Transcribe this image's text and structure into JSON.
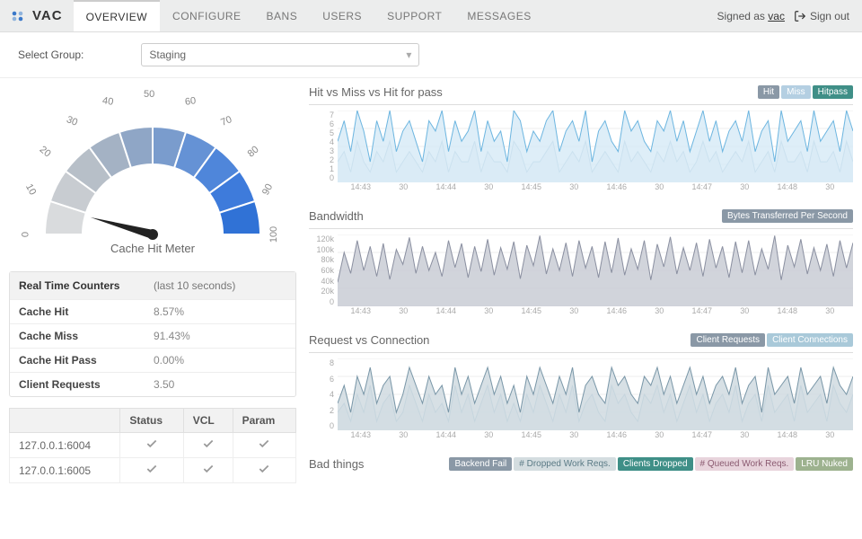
{
  "brand": "VAC",
  "nav": {
    "items": [
      "OVERVIEW",
      "CONFIGURE",
      "BANS",
      "USERS",
      "SUPPORT",
      "MESSAGES"
    ],
    "active": 0
  },
  "auth": {
    "signed_as_prefix": "Signed as",
    "user": "vac",
    "signout": "Sign out"
  },
  "group": {
    "label": "Select Group:",
    "value": "Staging"
  },
  "gauge": {
    "title": "Cache Hit Meter",
    "value": 8.57,
    "ticks": [
      "0",
      "10",
      "20",
      "30",
      "40",
      "50",
      "60",
      "70",
      "80",
      "90",
      "100"
    ],
    "tick_positions": [
      {
        "x": 14,
        "y": 162,
        "rot": 90
      },
      {
        "x": 18,
        "y": 112,
        "rot": 62
      },
      {
        "x": 34,
        "y": 70,
        "rot": 40
      },
      {
        "x": 64,
        "y": 36,
        "rot": 22
      },
      {
        "x": 104,
        "y": 14,
        "rot": 8
      },
      {
        "x": 150,
        "y": 6,
        "rot": 0
      },
      {
        "x": 196,
        "y": 14,
        "rot": -8
      },
      {
        "x": 236,
        "y": 36,
        "rot": -22
      },
      {
        "x": 266,
        "y": 70,
        "rot": -40
      },
      {
        "x": 282,
        "y": 112,
        "rot": -62
      },
      {
        "x": 286,
        "y": 162,
        "rot": -90
      }
    ],
    "seg_colors": [
      "#d9dbdd",
      "#c8ccd1",
      "#b7bfc8",
      "#a4b2c4",
      "#8fa6c6",
      "#7a9ccd",
      "#6592d5",
      "#4f86da",
      "#3e7bdb",
      "#3072d6"
    ],
    "needle_color": "#222222"
  },
  "counters": {
    "title": "Real Time Counters",
    "subtitle": "(last 10 seconds)",
    "rows": [
      {
        "k": "Cache Hit",
        "v": "8.57%"
      },
      {
        "k": "Cache Miss",
        "v": "91.43%"
      },
      {
        "k": "Cache Hit Pass",
        "v": "0.00%"
      },
      {
        "k": "Client Requests",
        "v": "3.50"
      }
    ]
  },
  "status": {
    "columns": [
      "",
      "Status",
      "VCL",
      "Param"
    ],
    "rows": [
      {
        "host": "127.0.0.1:6004",
        "status": true,
        "vcl": true,
        "param": true
      },
      {
        "host": "127.0.0.1:6005",
        "status": true,
        "vcl": true,
        "param": true
      }
    ]
  },
  "charts": {
    "xticks": [
      "14:43",
      "30",
      "14:44",
      "30",
      "14:45",
      "30",
      "14:46",
      "30",
      "14:47",
      "30",
      "14:48",
      "30"
    ],
    "hit": {
      "title": "Hit vs Miss vs Hit for pass",
      "legend": [
        {
          "label": "Hit",
          "bg": "#8a98a6"
        },
        {
          "label": "Miss",
          "bg": "#b4cfe2"
        },
        {
          "label": "Hitpass",
          "bg": "#3f8f87"
        }
      ],
      "ylim": [
        0,
        7
      ],
      "yticks": [
        "7",
        "6",
        "5",
        "4",
        "3",
        "2",
        "1",
        "0"
      ],
      "series_a": {
        "color": "#6eb6e0",
        "fill": "#d6eaf6",
        "data": [
          4,
          6,
          3,
          7,
          5,
          2,
          6,
          4,
          7,
          3,
          5,
          6,
          4,
          2,
          6,
          5,
          7,
          3,
          6,
          4,
          5,
          7,
          3,
          6,
          4,
          5,
          2,
          7,
          6,
          3,
          5,
          4,
          6,
          7,
          3,
          5,
          6,
          4,
          7,
          2,
          5,
          6,
          4,
          3,
          7,
          5,
          6,
          4,
          3,
          6,
          5,
          7,
          4,
          6,
          3,
          5,
          7,
          4,
          6,
          3,
          5,
          6,
          4,
          7,
          3,
          5,
          6,
          2,
          7,
          4,
          5,
          6,
          3,
          7,
          4,
          5,
          6,
          3,
          7,
          5
        ]
      },
      "series_b": {
        "color": "#9fbdd1",
        "fill": "#e6edf2",
        "data": [
          2,
          3,
          1,
          4,
          2,
          1,
          3,
          2,
          4,
          1,
          2,
          3,
          2,
          1,
          3,
          2,
          4,
          1,
          3,
          2,
          2,
          4,
          1,
          3,
          2,
          2,
          1,
          4,
          3,
          1,
          2,
          2,
          3,
          4,
          1,
          2,
          3,
          2,
          4,
          1,
          2,
          3,
          2,
          1,
          4,
          2,
          3,
          2,
          1,
          3,
          2,
          4,
          2,
          3,
          1,
          2,
          4,
          2,
          3,
          1,
          2,
          3,
          2,
          4,
          1,
          2,
          3,
          1,
          4,
          2,
          2,
          3,
          1,
          4,
          2,
          2,
          3,
          1,
          4,
          2
        ]
      }
    },
    "bandwidth": {
      "title": "Bandwidth",
      "badge": {
        "label": "Bytes Transferred Per Second",
        "bg": "#8a98a6"
      },
      "ylim": [
        0,
        120000
      ],
      "yticks": [
        "120k",
        "100k",
        "80k",
        "60k",
        "40k",
        "20k",
        "0"
      ],
      "series": {
        "color": "#8b90a1",
        "fill": "#c6c9d2",
        "data": [
          40,
          90,
          55,
          110,
          60,
          100,
          50,
          105,
          45,
          95,
          70,
          115,
          55,
          100,
          60,
          90,
          50,
          110,
          65,
          105,
          48,
          100,
          58,
          112,
          52,
          98,
          62,
          108,
          46,
          102,
          68,
          118,
          54,
          96,
          60,
          106,
          50,
          110,
          64,
          100,
          48,
          108,
          56,
          114,
          52,
          96,
          62,
          110,
          44,
          104,
          66,
          116,
          54,
          98,
          60,
          106,
          50,
          112,
          64,
          100,
          48,
          108,
          56,
          110,
          52,
          96,
          62,
          118,
          44,
          102,
          66,
          112,
          54,
          98,
          60,
          104,
          50,
          110,
          64,
          106
        ]
      }
    },
    "reqconn": {
      "title": "Request vs Connection",
      "legend": [
        {
          "label": "Client Requests",
          "bg": "#8a98a6"
        },
        {
          "label": "Client Connections",
          "bg": "#a9c9d9"
        }
      ],
      "ylim": [
        0,
        8
      ],
      "yticks": [
        "8",
        "6",
        "4",
        "2",
        "0"
      ],
      "series_a": {
        "color": "#7a97a8",
        "fill": "#cdd8df",
        "data": [
          3,
          5,
          2,
          6,
          4,
          7,
          3,
          5,
          6,
          2,
          4,
          7,
          5,
          3,
          6,
          4,
          5,
          2,
          7,
          4,
          6,
          3,
          5,
          7,
          4,
          6,
          3,
          5,
          2,
          6,
          4,
          7,
          5,
          3,
          6,
          4,
          7,
          2,
          5,
          6,
          4,
          3,
          7,
          5,
          6,
          4,
          3,
          6,
          5,
          7,
          4,
          6,
          3,
          5,
          7,
          4,
          6,
          3,
          5,
          6,
          4,
          7,
          3,
          5,
          6,
          2,
          7,
          4,
          5,
          6,
          3,
          7,
          4,
          5,
          6,
          3,
          7,
          5,
          4,
          6
        ]
      },
      "series_b": {
        "color": "#a9c9d9",
        "fill": "#e2edf3",
        "data": [
          2,
          3,
          1,
          4,
          2,
          5,
          1,
          3,
          4,
          1,
          2,
          5,
          3,
          1,
          4,
          2,
          3,
          1,
          5,
          2,
          4,
          1,
          3,
          5,
          2,
          4,
          1,
          3,
          1,
          4,
          2,
          5,
          3,
          1,
          4,
          2,
          5,
          1,
          3,
          4,
          2,
          1,
          5,
          3,
          4,
          2,
          1,
          4,
          3,
          5,
          2,
          4,
          1,
          3,
          5,
          2,
          4,
          1,
          3,
          4,
          2,
          5,
          1,
          3,
          4,
          1,
          5,
          2,
          3,
          4,
          1,
          5,
          2,
          3,
          4,
          1,
          5,
          3,
          2,
          4
        ]
      }
    },
    "bad": {
      "title": "Bad things",
      "legend": [
        {
          "label": "Backend Fail",
          "bg": "#8a98a6"
        },
        {
          "label": "# Dropped Work Reqs.",
          "bg": "#d4dde0",
          "fg": "#5a7a85"
        },
        {
          "label": "Clients Dropped",
          "bg": "#3f8f87"
        },
        {
          "label": "# Queued Work Reqs.",
          "bg": "#e8d4dc",
          "fg": "#8a5a70"
        },
        {
          "label": "LRU Nuked",
          "bg": "#9db28f"
        }
      ]
    }
  }
}
